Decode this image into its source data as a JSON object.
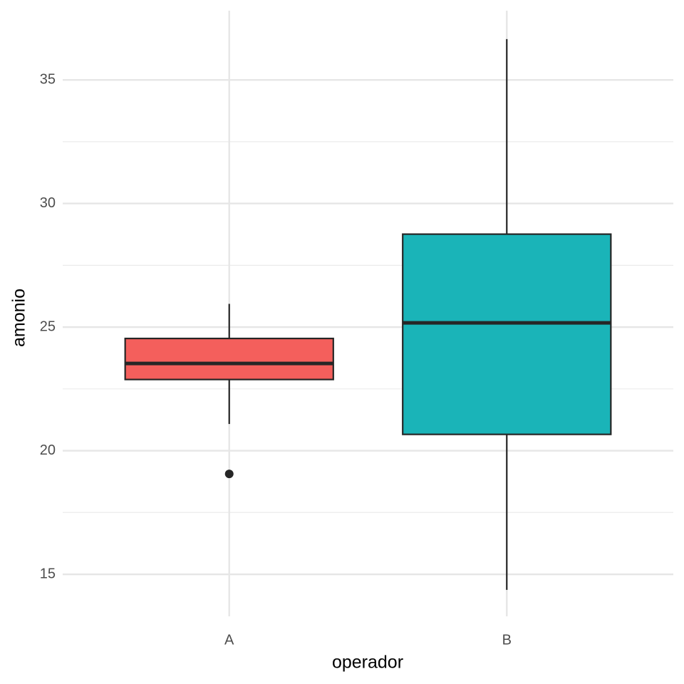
{
  "chart_data": {
    "type": "boxplot",
    "x_label": "operador",
    "y_label": "amonio",
    "categories": [
      "A",
      "B"
    ],
    "boxes": [
      {
        "min": 21.08,
        "q1": 22.88,
        "median": 23.53,
        "q3": 24.54,
        "max": 25.94,
        "outliers": [
          19.06
        ],
        "color": "#F45F5C"
      },
      {
        "min": 14.37,
        "q1": 20.66,
        "median": 25.17,
        "q3": 28.76,
        "max": 36.65,
        "outliers": [],
        "color": "#1AB4B8"
      }
    ],
    "ylim": [
      13.3,
      37.8
    ],
    "yticks": [
      15,
      20,
      25,
      30,
      35
    ],
    "y_minor_ticks": [
      17.5,
      22.5,
      27.5,
      32.5
    ],
    "grid": true
  }
}
